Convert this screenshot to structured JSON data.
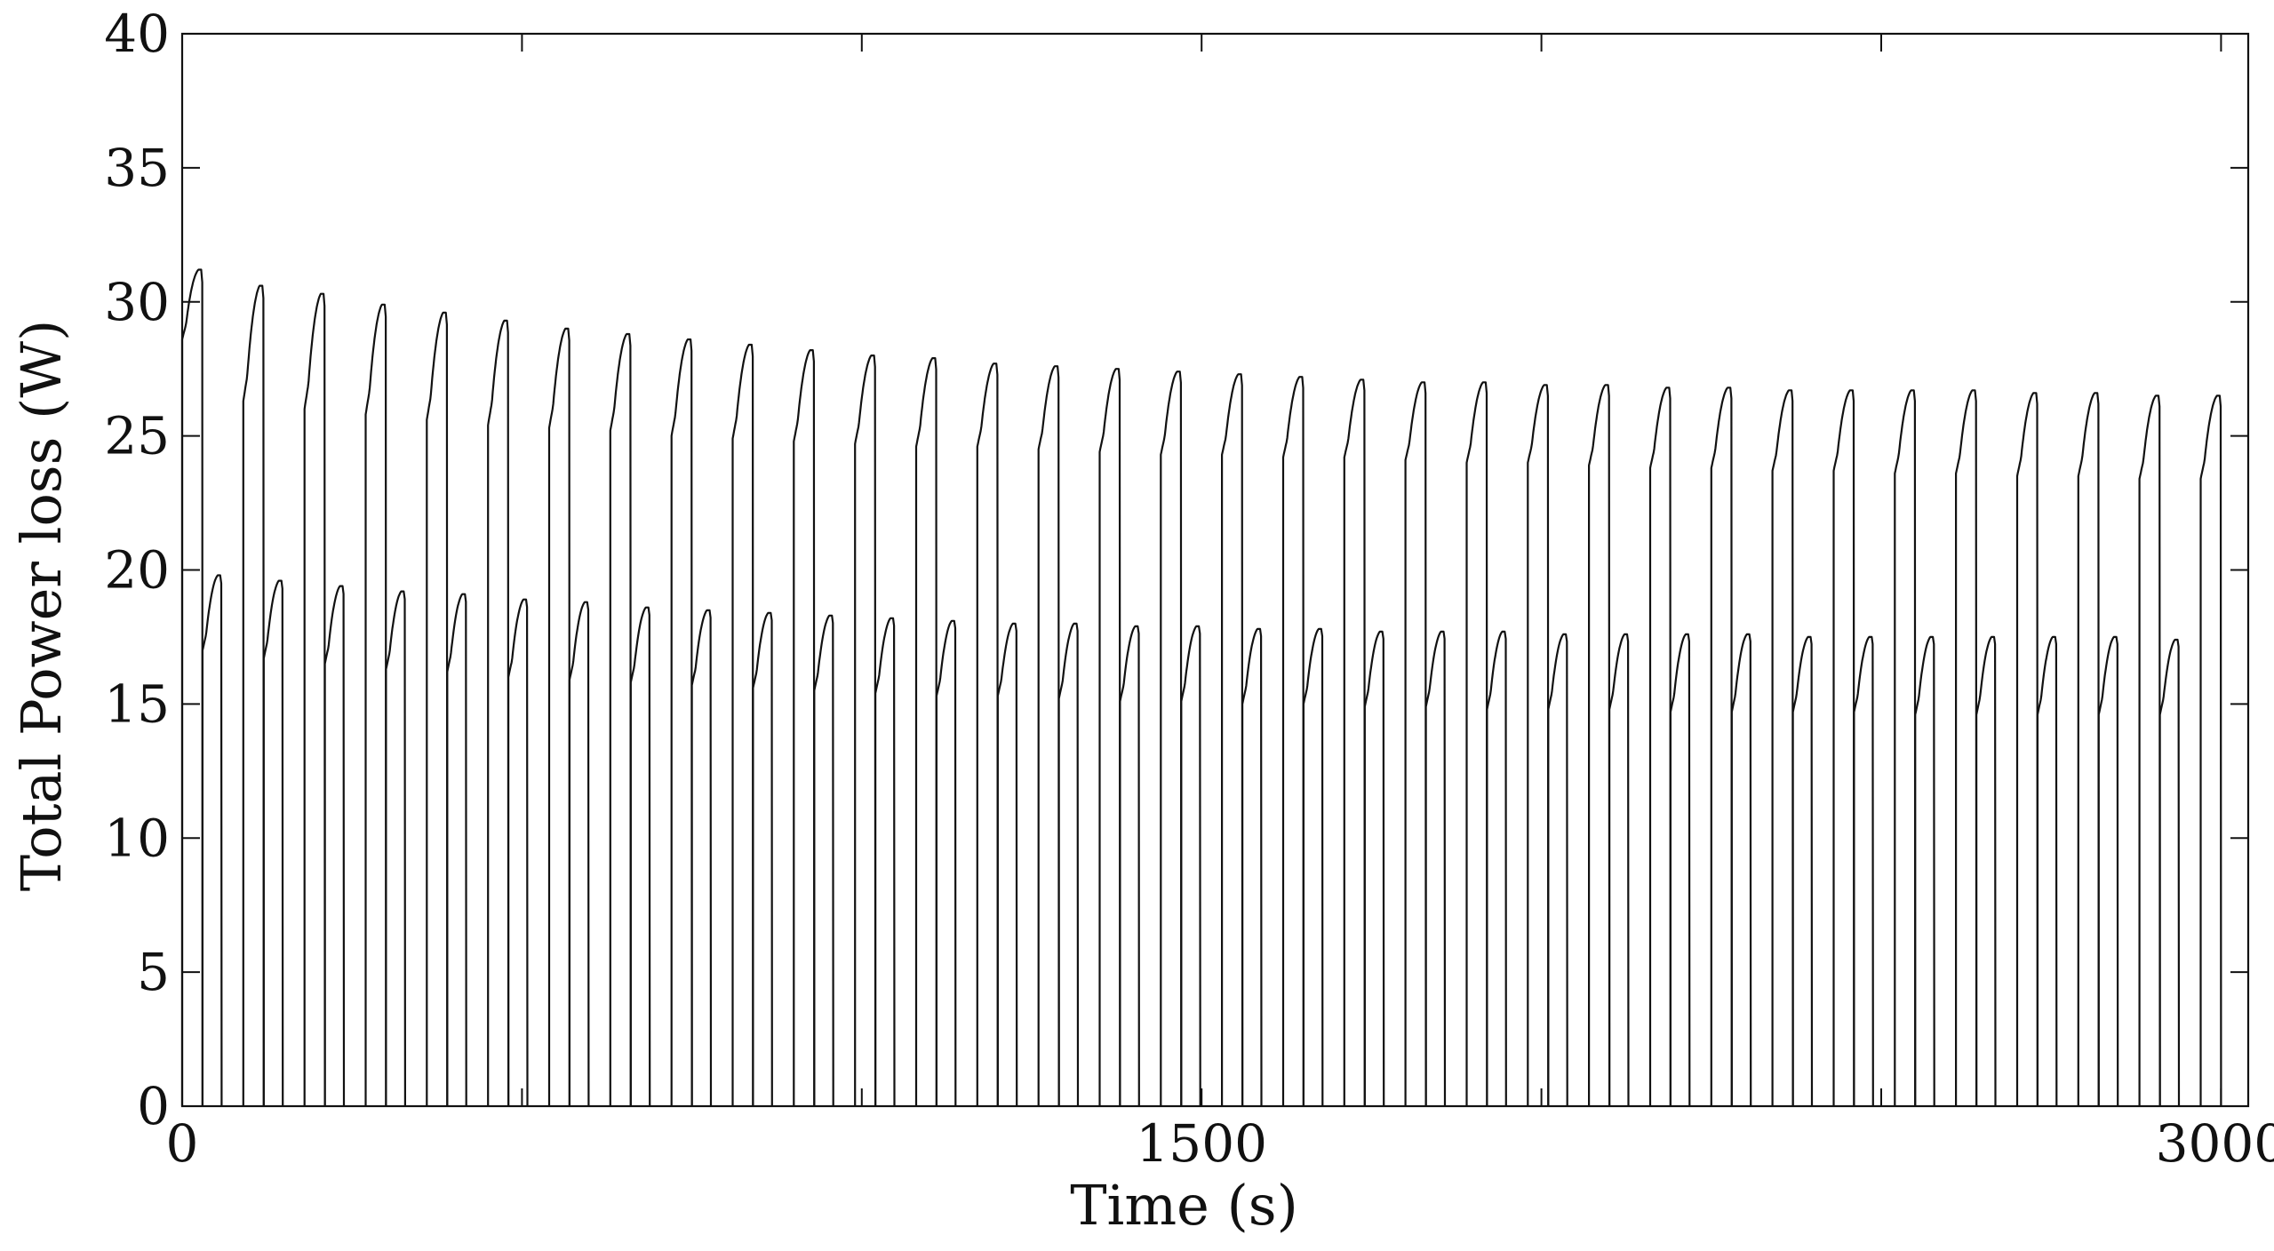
{
  "chart_data": {
    "type": "line",
    "title": "",
    "xlabel": "Time (s)",
    "ylabel": "Total Power loss (W)",
    "xlim": [
      0,
      3000
    ],
    "ylim": [
      0,
      40
    ],
    "x_ticks": [
      "0",
      "1500",
      "3000"
    ],
    "x_tick_values": [
      0,
      1500,
      3000
    ],
    "y_ticks": [
      "0",
      "5",
      "10",
      "15",
      "20",
      "25",
      "30",
      "35",
      "40"
    ],
    "y_tick_values": [
      0,
      5,
      10,
      15,
      20,
      25,
      30,
      35,
      40
    ],
    "grid": false,
    "legend": "none",
    "line_color": "#111111",
    "cycle_period_s": 90,
    "cycle_count": 34,
    "series": [
      {
        "label_description": "upper pulse train",
        "cycle_start_s": [
          0,
          90,
          180,
          270,
          360,
          450,
          540,
          630,
          720,
          810,
          900,
          990,
          1080,
          1170,
          1260,
          1350,
          1440,
          1530,
          1620,
          1710,
          1800,
          1890,
          1980,
          2070,
          2160,
          2250,
          2340,
          2430,
          2520,
          2610,
          2700,
          2790,
          2880,
          2970
        ],
        "start_value_W": [
          28.6,
          26.3,
          26.0,
          25.8,
          25.6,
          25.4,
          25.3,
          25.2,
          25.0,
          24.9,
          24.8,
          24.7,
          24.6,
          24.6,
          24.5,
          24.4,
          24.3,
          24.3,
          24.2,
          24.2,
          24.1,
          24.0,
          24.0,
          23.9,
          23.8,
          23.8,
          23.7,
          23.7,
          23.6,
          23.6,
          23.5,
          23.5,
          23.4,
          23.4
        ],
        "peak_value_W": [
          31.2,
          30.6,
          30.3,
          29.9,
          29.6,
          29.3,
          29.0,
          28.8,
          28.6,
          28.4,
          28.2,
          28.0,
          27.9,
          27.7,
          27.6,
          27.5,
          27.4,
          27.3,
          27.2,
          27.1,
          27.0,
          27.0,
          26.9,
          26.9,
          26.8,
          26.8,
          26.7,
          26.7,
          26.7,
          26.7,
          26.6,
          26.6,
          26.5,
          26.5
        ]
      },
      {
        "label_description": "lower pulse train",
        "cycle_start_s": [
          30,
          120,
          210,
          300,
          390,
          480,
          570,
          660,
          750,
          840,
          930,
          1020,
          1110,
          1200,
          1290,
          1380,
          1470,
          1560,
          1650,
          1740,
          1830,
          1920,
          2010,
          2100,
          2190,
          2280,
          2370,
          2460,
          2550,
          2640,
          2730,
          2820,
          2910
        ],
        "start_value_W": [
          17.0,
          16.7,
          16.5,
          16.3,
          16.2,
          16.0,
          15.9,
          15.8,
          15.7,
          15.6,
          15.5,
          15.4,
          15.3,
          15.3,
          15.2,
          15.1,
          15.1,
          15.0,
          15.0,
          14.9,
          14.9,
          14.8,
          14.8,
          14.8,
          14.7,
          14.7,
          14.7,
          14.7,
          14.6,
          14.6,
          14.6,
          14.6,
          14.6
        ],
        "peak_value_W": [
          19.8,
          19.6,
          19.4,
          19.2,
          19.1,
          18.9,
          18.8,
          18.6,
          18.5,
          18.4,
          18.3,
          18.2,
          18.1,
          18.0,
          18.0,
          17.9,
          17.9,
          17.8,
          17.8,
          17.7,
          17.7,
          17.7,
          17.6,
          17.6,
          17.6,
          17.6,
          17.5,
          17.5,
          17.5,
          17.5,
          17.5,
          17.5,
          17.4
        ]
      }
    ]
  }
}
